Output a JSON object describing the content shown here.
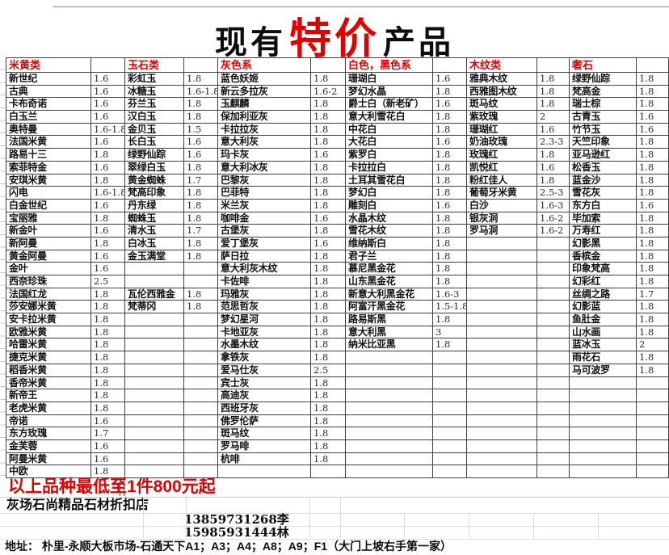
{
  "title": {
    "prefix": "现有",
    "highlight": "特价",
    "suffix": "产品"
  },
  "colors": {
    "accent_red": "#e00000",
    "border_dark": "#3f3f3f",
    "gridline_light": "#dcdcdc"
  },
  "table": {
    "row_count": 32,
    "groups": [
      {
        "header": "米黄类",
        "items": [
          [
            "新世纪",
            "1.6"
          ],
          [
            "古典",
            "1.6"
          ],
          [
            "卡布奇诺",
            "1.6"
          ],
          [
            "白玉兰",
            "1.6"
          ],
          [
            "奥特曼",
            "1.6-1.8"
          ],
          [
            "法国米黄",
            "1.6"
          ],
          [
            "路易十三",
            "1.8"
          ],
          [
            "索菲特金",
            "1.6"
          ],
          [
            "安琪米黄",
            "1.8"
          ],
          [
            "闪电",
            "1.6-1.8"
          ],
          [
            "白金世纪",
            "1.6"
          ],
          [
            "宝丽雅",
            "1.8"
          ],
          [
            "新金叶",
            "1.6"
          ],
          [
            "新阿曼",
            "1.8"
          ],
          [
            "黄金阿曼",
            "1.6"
          ],
          [
            "金叶",
            "1.6"
          ],
          [
            "西奈珍珠",
            "2.5"
          ],
          [
            "法国红龙",
            "1.8"
          ],
          [
            "莎安娜米黄",
            "1.8"
          ],
          [
            "安卡拉米黄",
            "1.8"
          ],
          [
            "欧雅米黄",
            "1.8"
          ],
          [
            "哈雷米黄",
            "1.8"
          ],
          [
            "捷克米黄",
            "1.8"
          ],
          [
            "稻香米黄",
            "1.8"
          ],
          [
            "香帝米黄",
            "1.8"
          ],
          [
            "新帝王",
            "1.8"
          ],
          [
            "老虎米黄",
            "1.8"
          ],
          [
            "帝诺",
            "1.6"
          ],
          [
            "东方玫瑰",
            "1.7"
          ],
          [
            "金芙蓉",
            "1.6"
          ],
          [
            "阿曼米黄",
            "1.6"
          ],
          [
            "中欧",
            "1.8"
          ]
        ]
      },
      {
        "header": "玉石类",
        "items": [
          [
            "彩虹玉",
            "1.8"
          ],
          [
            "冰糖玉",
            "1.6-1.8"
          ],
          [
            "芬兰玉",
            "1.8"
          ],
          [
            "汉白玉",
            "1.8"
          ],
          [
            "金贝玉",
            "1.5"
          ],
          [
            "长白玉",
            "1.6"
          ],
          [
            "绿野仙踪",
            "1.6"
          ],
          [
            "翠绿白玉",
            "1.8"
          ],
          [
            "黄金蜘蛛",
            "1.7"
          ],
          [
            "梵高印象",
            "1.8"
          ],
          [
            "丹东绿",
            "1.8"
          ],
          [
            "蜘蛛玉",
            "1.8"
          ],
          [
            "清水玉",
            "1.7"
          ],
          [
            "白冰玉",
            "1.8"
          ],
          [
            "金玉满堂",
            "1.8"
          ],
          [
            "",
            ""
          ],
          [
            "",
            ""
          ],
          [
            "瓦伦西雅金",
            "1.8"
          ],
          [
            "梵蒂冈",
            "1.8"
          ],
          [
            "",
            ""
          ],
          [
            "",
            ""
          ],
          [
            "",
            ""
          ],
          [
            "",
            ""
          ],
          [
            "",
            ""
          ],
          [
            "",
            ""
          ],
          [
            "",
            ""
          ],
          [
            "",
            ""
          ],
          [
            "",
            ""
          ],
          [
            "",
            ""
          ],
          [
            "",
            ""
          ],
          [
            "",
            ""
          ],
          [
            "",
            ""
          ]
        ]
      },
      {
        "header": "灰色系",
        "items": [
          [
            "蓝色妖姬",
            "1.8"
          ],
          [
            "新云多拉灰",
            "1.6-2"
          ],
          [
            "玉麒麟",
            "1.8"
          ],
          [
            "保加利亚灰",
            "1.8"
          ],
          [
            "卡拉拉灰",
            "1.8"
          ],
          [
            "意大利灰",
            "1.8"
          ],
          [
            "玛卡灰",
            "1.6"
          ],
          [
            "意大利冰灰",
            "1.8"
          ],
          [
            "巴黎灰",
            "1.8"
          ],
          [
            "巴菲特",
            "1.8"
          ],
          [
            "米兰灰",
            "1.8"
          ],
          [
            "咖啡金",
            "1.6"
          ],
          [
            "古堡灰",
            "1.8"
          ],
          [
            "爱丁堡灰",
            "1.6"
          ],
          [
            "萨日拉",
            "1.8"
          ],
          [
            "意大利灰木纹",
            "1.8"
          ],
          [
            "卡佐啡",
            "1.8"
          ],
          [
            "玛雅灰",
            "1.8"
          ],
          [
            "范思哲灰",
            "1.8"
          ],
          [
            "梦幻星河",
            "1.8"
          ],
          [
            "卡地亚灰",
            "1.8"
          ],
          [
            "水墨木纹",
            "1.8"
          ],
          [
            "拿铁灰",
            "1.8"
          ],
          [
            "爱马仕灰",
            "2.5"
          ],
          [
            "宾士灰",
            "1.8"
          ],
          [
            "高迪灰",
            "1.8"
          ],
          [
            "西班牙灰",
            "1.8"
          ],
          [
            "佛罗伦萨",
            "1.8"
          ],
          [
            "斑马纹",
            "1.8"
          ],
          [
            "罗马啡",
            "1.8"
          ],
          [
            "杭啡",
            "1.8"
          ],
          [
            "",
            ""
          ]
        ]
      },
      {
        "header": "白色，黑色系",
        "items": [
          [
            "珊瑚白",
            "1.6"
          ],
          [
            "梦幻水晶",
            "1.8"
          ],
          [
            "爵士白（新老矿）",
            "1.6"
          ],
          [
            "意大利雪花白",
            "1.8"
          ],
          [
            "中花白",
            "1.8"
          ],
          [
            "大花白",
            "1.6"
          ],
          [
            "紫罗白",
            "1.8"
          ],
          [
            "卡拉拉白",
            "1.8"
          ],
          [
            "土耳其雪花白",
            "1.8"
          ],
          [
            "梦幻白",
            "1.8"
          ],
          [
            "雕刻白",
            "1.6"
          ],
          [
            "水晶木纹",
            "1.8"
          ],
          [
            "雪花木纹",
            "1.8"
          ],
          [
            "维纳斯白",
            "1.8"
          ],
          [
            "君子兰",
            "1.8"
          ],
          [
            "慕尼黑金花",
            "1.8"
          ],
          [
            "山东黑金花",
            "1.8"
          ],
          [
            "新意大利黑金花",
            "1.6-3"
          ],
          [
            "阿富汗黑金花",
            "1.5-1.8"
          ],
          [
            "路易斯黑",
            "1.8"
          ],
          [
            "意大利黑",
            "3"
          ],
          [
            "纳米比亚黑",
            "1.8"
          ],
          [
            "",
            ""
          ],
          [
            "",
            ""
          ],
          [
            "",
            ""
          ],
          [
            "",
            ""
          ],
          [
            "",
            ""
          ],
          [
            "",
            ""
          ],
          [
            "",
            ""
          ],
          [
            "",
            ""
          ],
          [
            "",
            ""
          ],
          [
            "",
            ""
          ]
        ]
      },
      {
        "header": "木纹类",
        "items": [
          [
            "雅典木纹",
            "1.8"
          ],
          [
            "西雅图木纹",
            "1.8"
          ],
          [
            "斑马纹",
            "1.8"
          ],
          [
            "紫玫瑰",
            "2"
          ],
          [
            "珊瑚红",
            "1.6"
          ],
          [
            "奶油玫瑰",
            "2.3-3"
          ],
          [
            "玫瑰红",
            "1.8"
          ],
          [
            "凯悦红",
            "1.6"
          ],
          [
            "粉红佳人",
            "1.8"
          ],
          [
            "葡萄牙米黄",
            "2.5-3"
          ],
          [
            "白沙",
            "1.6-3"
          ],
          [
            "银灰洞",
            "1.6-2"
          ],
          [
            "罗马洞",
            "1.6-2"
          ],
          [
            "",
            ""
          ],
          [
            "",
            ""
          ],
          [
            "",
            ""
          ],
          [
            "",
            ""
          ],
          [
            "",
            ""
          ],
          [
            "",
            ""
          ],
          [
            "",
            ""
          ],
          [
            "",
            ""
          ],
          [
            "",
            ""
          ],
          [
            "",
            ""
          ],
          [
            "",
            ""
          ],
          [
            "",
            ""
          ],
          [
            "",
            ""
          ],
          [
            "",
            ""
          ],
          [
            "",
            ""
          ],
          [
            "",
            ""
          ],
          [
            "",
            ""
          ],
          [
            "",
            ""
          ],
          [
            "",
            ""
          ]
        ]
      },
      {
        "header": "奢石",
        "items": [
          [
            "绿野仙踪",
            "1.8"
          ],
          [
            "梵高金",
            "1.8"
          ],
          [
            "瑞士棕",
            "1.8"
          ],
          [
            "古青玉",
            "1.6"
          ],
          [
            "竹节玉",
            "1.6"
          ],
          [
            "天竺印象",
            "1.8"
          ],
          [
            "亚马逊红",
            "1.8"
          ],
          [
            "松香玉",
            "1.8"
          ],
          [
            "蓝金沙",
            "1.8"
          ],
          [
            "雪花灰",
            "1.8"
          ],
          [
            "东方白",
            "1.6"
          ],
          [
            "毕加索",
            "1.8"
          ],
          [
            "万寿红",
            "1.8"
          ],
          [
            "幻影黑",
            "1.8"
          ],
          [
            "香槟金",
            "1.8"
          ],
          [
            "印象梵高",
            "1.8"
          ],
          [
            "幻彩红",
            "1.8"
          ],
          [
            "丝绸之路",
            "1.7"
          ],
          [
            "幻影蓝",
            "1.8"
          ],
          [
            "鱼肚金",
            "1.8"
          ],
          [
            "山水画",
            "1.8"
          ],
          [
            "蓝冰玉",
            "2"
          ],
          [
            "雨花石",
            "1.8"
          ],
          [
            "马可波罗",
            "1.8"
          ],
          [
            "",
            ""
          ],
          [
            "",
            ""
          ],
          [
            "",
            ""
          ],
          [
            "",
            ""
          ],
          [
            "",
            ""
          ],
          [
            "",
            ""
          ],
          [
            "",
            ""
          ],
          [
            "",
            ""
          ]
        ]
      }
    ]
  },
  "footer": {
    "banner": "以上品种最低至1件800元起",
    "shop": "灰场石尚精品石材折扣店",
    "phones": [
      "13859731268李",
      "15985931444林"
    ],
    "address": "地址： 朴里-永顺大板市场-石通天下A1；A3；A4；A8；A9；F1（大门上坡右手第一家）"
  }
}
